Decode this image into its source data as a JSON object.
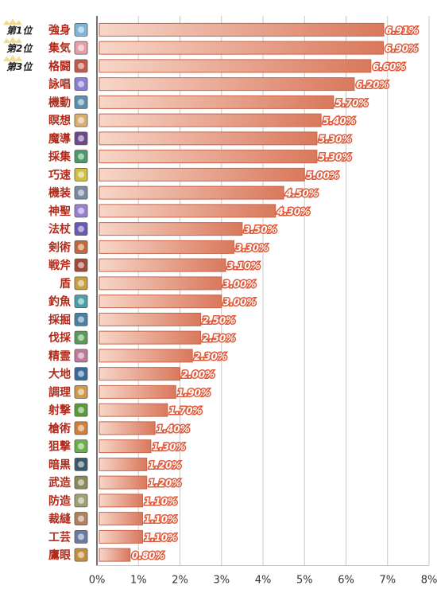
{
  "chart_data": {
    "type": "bar",
    "orientation": "horizontal",
    "categories": [
      "強身",
      "集気",
      "格闘",
      "詠唱",
      "機動",
      "瞑想",
      "魔導",
      "採集",
      "巧速",
      "機装",
      "神聖",
      "法杖",
      "剣術",
      "戦斧",
      "盾",
      "釣魚",
      "採掘",
      "伐採",
      "精霊",
      "大地",
      "調理",
      "射撃",
      "槍術",
      "狙撃",
      "暗黒",
      "武造",
      "防造",
      "裁縫",
      "工芸",
      "鷹眼"
    ],
    "values": [
      6.91,
      6.9,
      6.6,
      6.2,
      5.7,
      5.4,
      5.3,
      5.3,
      5.0,
      4.5,
      4.3,
      3.5,
      3.3,
      3.1,
      3.0,
      3.0,
      2.5,
      2.5,
      2.3,
      2.0,
      1.9,
      1.7,
      1.4,
      1.3,
      1.2,
      1.2,
      1.1,
      1.1,
      1.1,
      0.8
    ],
    "data_labels": [
      "6.91%",
      "6.90%",
      "6.60%",
      "6.20%",
      "5.70%",
      "5.40%",
      "5.30%",
      "5.30%",
      "5.00%",
      "4.50%",
      "4.30%",
      "3.50%",
      "3.30%",
      "3.10%",
      "3.00%",
      "3.00%",
      "2.50%",
      "2.50%",
      "2.30%",
      "2.00%",
      "1.90%",
      "1.70%",
      "1.40%",
      "1.30%",
      "1.20%",
      "1.20%",
      "1.10%",
      "1.10%",
      "1.10%",
      "0.80%"
    ],
    "rank_badges": [
      "第1位",
      "第2位",
      "第3位"
    ],
    "xlim": [
      0,
      8
    ],
    "x_ticks": [
      0,
      1,
      2,
      3,
      4,
      5,
      6,
      7,
      8
    ],
    "x_tick_labels": [
      "0%",
      "1%",
      "2%",
      "3%",
      "4%",
      "5%",
      "6%",
      "7%",
      "8%"
    ],
    "xlabel": "",
    "ylabel": "",
    "title": "",
    "grid": "vertical",
    "legend": "none",
    "colors": {
      "bar_light": "#f7d6c8",
      "bar_dark": "#d9785c",
      "bar_border": "#c9644a",
      "label_text": "#b22a1a",
      "data_label_fill": "#ffffff",
      "data_label_stroke": "#e05a3a",
      "gridline": "#c8c8c8",
      "axis": "#444444",
      "badge_gold": "#e8c64a"
    },
    "icons": [
      "strength-icon",
      "spirit-icon",
      "fist-icon",
      "chant-icon",
      "agility-icon",
      "meditate-icon",
      "magic-icon",
      "gather-icon",
      "speed-icon",
      "machine-icon",
      "holy-icon",
      "staff-icon",
      "sword-icon",
      "axe-icon",
      "shield-icon",
      "fishing-icon",
      "mining-icon",
      "lumber-icon",
      "elemental-icon",
      "earth-icon",
      "cooking-icon",
      "shooting-icon",
      "spear-icon",
      "sniper-icon",
      "dark-icon",
      "weaponsmith-icon",
      "armorsmith-icon",
      "sewing-icon",
      "craft-icon",
      "hawkeye-icon"
    ],
    "icon_colors": [
      "#7fb6d8",
      "#e8a0a8",
      "#c05a4a",
      "#8a7fd0",
      "#5a8fb0",
      "#d8b070",
      "#6a4a8a",
      "#4a9a6a",
      "#d0c040",
      "#7a8aa0",
      "#9a80d0",
      "#6a5ab0",
      "#c06a3a",
      "#a04a3a",
      "#c8a040",
      "#4aa0a8",
      "#4a80a0",
      "#5a9a5a",
      "#c07a9a",
      "#3a6a9a",
      "#d09a4a",
      "#5a9a3a",
      "#d0803a",
      "#6ab04a",
      "#3a5a6a",
      "#8a8a5a",
      "#a0a070",
      "#b08060",
      "#6a7aa0",
      "#c09040"
    ]
  }
}
